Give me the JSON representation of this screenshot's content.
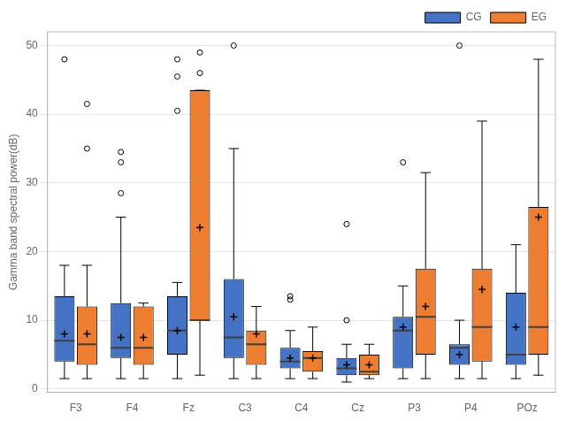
{
  "chart_data": {
    "type": "box",
    "ylabel": "Gamma band spectral power(dB)",
    "categories": [
      "F3",
      "F4",
      "Fz",
      "C3",
      "C4",
      "Cz",
      "P3",
      "P4",
      "POz"
    ],
    "ylim": [
      -0.5,
      52
    ],
    "yticks": [
      0,
      10,
      20,
      30,
      40,
      50
    ],
    "grid": true,
    "legend": "upper right",
    "series": [
      {
        "name": "CG",
        "color": "#4472c4",
        "values": [
          {
            "whislo": 1.5,
            "q1": 4.0,
            "med": 7.0,
            "q3": 13.5,
            "whishi": 18.0,
            "mean": 8.0,
            "fliers": [
              48.0
            ]
          },
          {
            "whislo": 1.5,
            "q1": 4.5,
            "med": 6.0,
            "q3": 12.5,
            "whishi": 25.0,
            "mean": 7.5,
            "fliers": [
              28.5,
              33.0,
              34.5
            ]
          },
          {
            "whislo": 1.5,
            "q1": 5.0,
            "med": 8.5,
            "q3": 13.5,
            "whishi": 15.5,
            "mean": 8.5,
            "fliers": [
              40.5,
              45.5,
              48.0
            ]
          },
          {
            "whislo": 1.5,
            "q1": 4.5,
            "med": 7.5,
            "q3": 16.0,
            "whishi": 35.0,
            "mean": 10.5,
            "fliers": [
              50.0
            ]
          },
          {
            "whislo": 1.5,
            "q1": 3.0,
            "med": 4.0,
            "q3": 6.0,
            "whishi": 8.5,
            "mean": 4.5,
            "fliers": [
              13.0,
              13.5
            ]
          },
          {
            "whislo": 1.0,
            "q1": 2.0,
            "med": 3.0,
            "q3": 4.5,
            "whishi": 6.5,
            "mean": 3.5,
            "fliers": [
              10.0,
              24.0
            ]
          },
          {
            "whislo": 1.5,
            "q1": 3.0,
            "med": 8.5,
            "q3": 10.5,
            "whishi": 15.0,
            "mean": 9.0,
            "fliers": [
              33.0
            ]
          },
          {
            "whislo": 1.5,
            "q1": 3.5,
            "med": 6.0,
            "q3": 6.5,
            "whishi": 10.0,
            "mean": 5.0,
            "fliers": [
              50.0
            ]
          },
          {
            "whislo": 1.5,
            "q1": 3.5,
            "med": 5.0,
            "q3": 14.0,
            "whishi": 21.0,
            "mean": 9.0,
            "fliers": []
          }
        ]
      },
      {
        "name": "EG",
        "color": "#ed7d31",
        "values": [
          {
            "whislo": 1.5,
            "q1": 3.5,
            "med": 6.5,
            "q3": 12.0,
            "whishi": 18.0,
            "mean": 8.0,
            "fliers": [
              35.0,
              41.5
            ]
          },
          {
            "whislo": 1.5,
            "q1": 3.5,
            "med": 6.0,
            "q3": 12.0,
            "whishi": 12.5,
            "mean": 7.5,
            "fliers": []
          },
          {
            "whislo": 2.0,
            "q1": 10.0,
            "med": 10.0,
            "q3": 43.5,
            "whishi": 43.5,
            "mean": 23.5,
            "fliers": [
              46.0,
              49.0
            ]
          },
          {
            "whislo": 1.5,
            "q1": 3.5,
            "med": 6.5,
            "q3": 8.5,
            "whishi": 12.0,
            "mean": 8.0,
            "fliers": []
          },
          {
            "whislo": 1.5,
            "q1": 2.5,
            "med": 4.5,
            "q3": 5.5,
            "whishi": 9.0,
            "mean": 4.5,
            "fliers": []
          },
          {
            "whislo": 1.5,
            "q1": 2.0,
            "med": 2.5,
            "q3": 5.0,
            "whishi": 6.5,
            "mean": 3.5,
            "fliers": []
          },
          {
            "whislo": 1.5,
            "q1": 5.0,
            "med": 10.5,
            "q3": 17.5,
            "whishi": 31.5,
            "mean": 12.0,
            "fliers": []
          },
          {
            "whislo": 1.5,
            "q1": 4.0,
            "med": 9.0,
            "q3": 17.5,
            "whishi": 39.0,
            "mean": 14.5,
            "fliers": []
          },
          {
            "whislo": 2.0,
            "q1": 5.0,
            "med": 9.0,
            "q3": 26.5,
            "whishi": 48.0,
            "mean": 25.0,
            "fliers": []
          }
        ]
      }
    ]
  }
}
